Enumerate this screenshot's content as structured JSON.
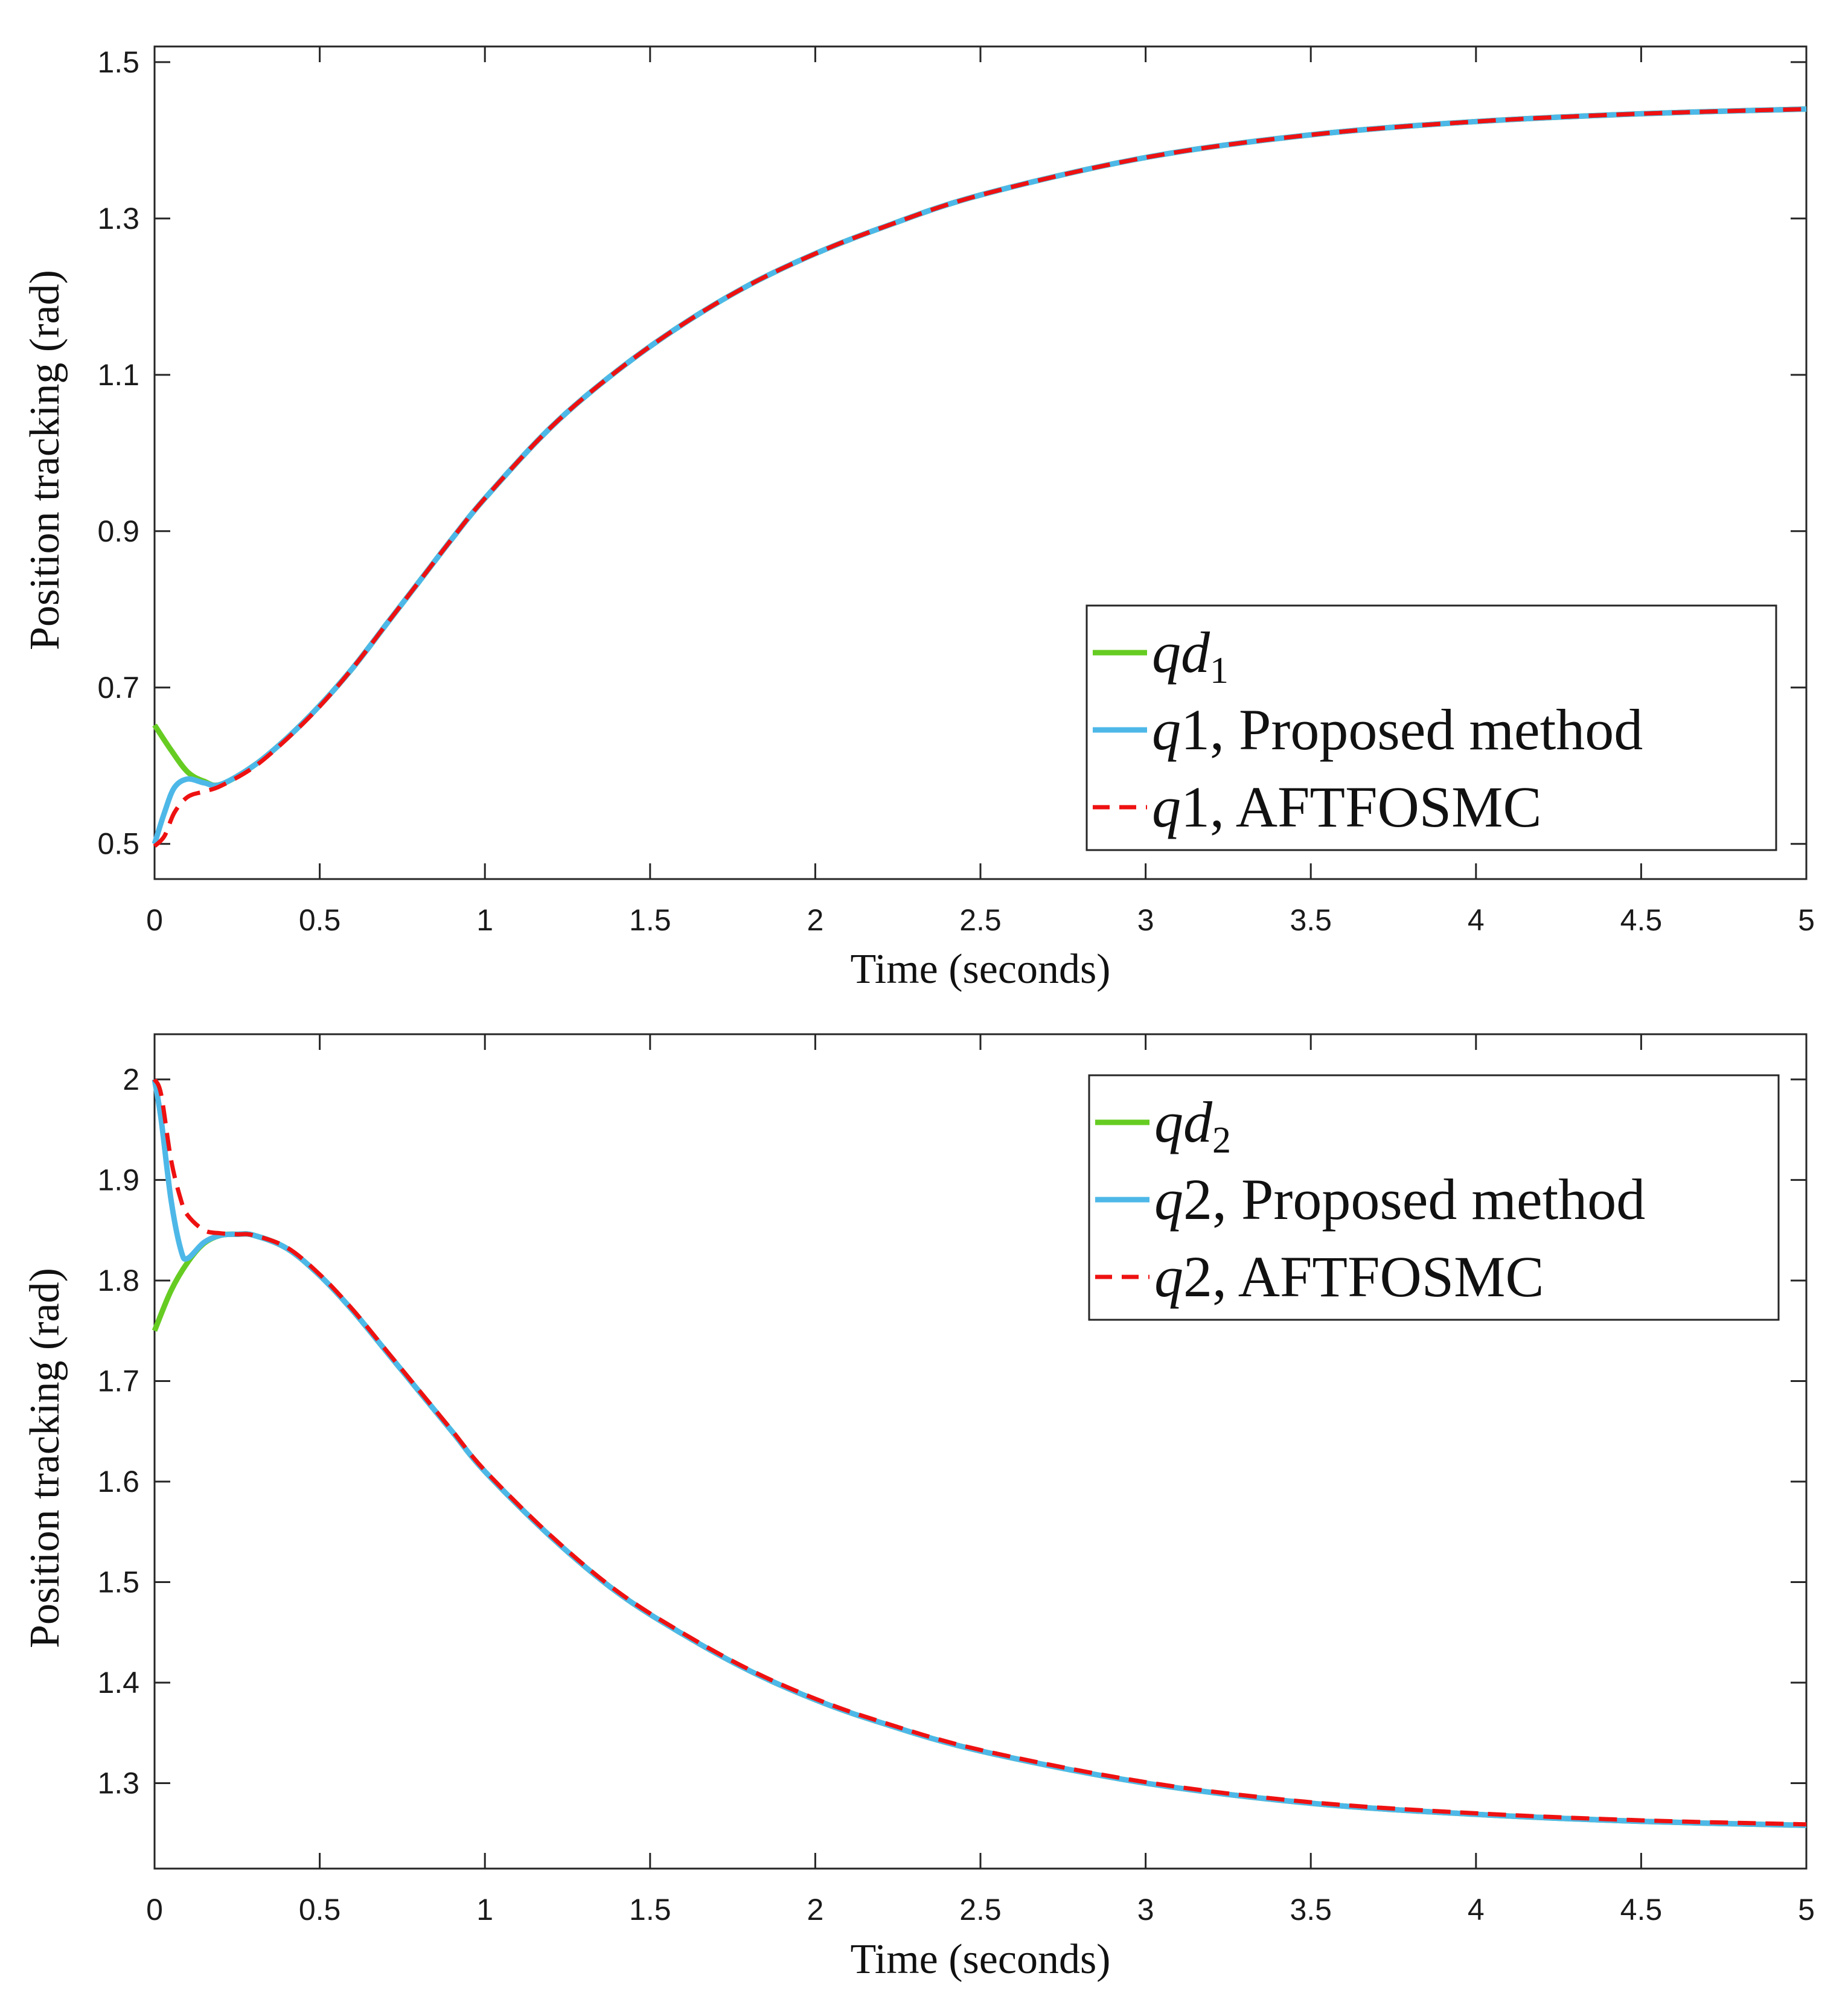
{
  "chart_data": [
    {
      "type": "line",
      "xlabel": "Time (seconds)",
      "ylabel": "Position tracking (rad)",
      "xlim": [
        0,
        5
      ],
      "ylim": [
        0.455,
        1.52
      ],
      "xticks": [
        0,
        0.5,
        1,
        1.5,
        2,
        2.5,
        3,
        3.5,
        4,
        4.5,
        5
      ],
      "xtick_labels": [
        "0",
        "0.5",
        "1",
        "1.5",
        "2",
        "2.5",
        "3",
        "3.5",
        "4",
        "4.5",
        "5"
      ],
      "yticks": [
        0.5,
        0.7,
        0.9,
        1.1,
        1.3,
        1.5
      ],
      "ytick_labels": [
        "0.5",
        "0.7",
        "0.9",
        "1.1",
        "1.3",
        "1.5"
      ],
      "legend_position": "bottom-right",
      "legend": [
        {
          "base": "qd",
          "sub": "1",
          "rest": ""
        },
        {
          "base": "q",
          "sub": "",
          "rest": "1, Proposed method"
        },
        {
          "base": "q",
          "sub": "",
          "rest": "1, AFTFOSMC"
        }
      ],
      "series": [
        {
          "name": "qd1",
          "color": "#66cc22",
          "dash": "solid",
          "x": [
            0,
            0.05,
            0.1,
            0.15,
            0.2,
            0.3,
            0.4,
            0.5,
            0.6,
            0.7,
            0.8,
            0.9,
            1.0,
            1.2,
            1.4,
            1.6,
            1.8,
            2.0,
            2.2,
            2.5,
            3.0,
            3.5,
            4.0,
            4.5,
            5.0
          ],
          "y": [
            0.652,
            0.62,
            0.592,
            0.58,
            0.576,
            0.6,
            0.635,
            0.677,
            0.725,
            0.78,
            0.835,
            0.89,
            0.942,
            1.033,
            1.105,
            1.165,
            1.215,
            1.255,
            1.288,
            1.33,
            1.378,
            1.407,
            1.424,
            1.434,
            1.44
          ]
        },
        {
          "name": "q1, Proposed method",
          "color": "#4db8e8",
          "dash": "solid",
          "x": [
            0,
            0.03,
            0.06,
            0.1,
            0.15,
            0.2,
            0.3,
            0.4,
            0.5,
            0.6,
            0.7,
            0.8,
            0.9,
            1.0,
            1.2,
            1.4,
            1.6,
            1.8,
            2.0,
            2.2,
            2.5,
            3.0,
            3.5,
            4.0,
            4.5,
            5.0
          ],
          "y": [
            0.5,
            0.54,
            0.572,
            0.583,
            0.578,
            0.576,
            0.6,
            0.635,
            0.677,
            0.725,
            0.78,
            0.835,
            0.89,
            0.942,
            1.033,
            1.105,
            1.165,
            1.215,
            1.255,
            1.288,
            1.33,
            1.378,
            1.407,
            1.424,
            1.434,
            1.44
          ]
        },
        {
          "name": "q1, AFTFOSMC",
          "color": "#ee1111",
          "dash": "dashed",
          "x": [
            0,
            0.03,
            0.06,
            0.1,
            0.15,
            0.2,
            0.3,
            0.4,
            0.5,
            0.6,
            0.7,
            0.8,
            0.9,
            1.0,
            1.2,
            1.4,
            1.6,
            1.8,
            2.0,
            2.2,
            2.5,
            3.0,
            3.5,
            4.0,
            4.5,
            5.0
          ],
          "y": [
            0.497,
            0.51,
            0.54,
            0.56,
            0.567,
            0.574,
            0.598,
            0.634,
            0.676,
            0.725,
            0.78,
            0.835,
            0.89,
            0.942,
            1.033,
            1.105,
            1.165,
            1.215,
            1.255,
            1.288,
            1.33,
            1.378,
            1.407,
            1.424,
            1.434,
            1.44
          ]
        }
      ]
    },
    {
      "type": "line",
      "xlabel": "Time (seconds)",
      "ylabel": "Position tracking (rad)",
      "xlim": [
        0,
        5
      ],
      "ylim": [
        1.215,
        2.045
      ],
      "xticks": [
        0,
        0.5,
        1,
        1.5,
        2,
        2.5,
        3,
        3.5,
        4,
        4.5,
        5
      ],
      "xtick_labels": [
        "0",
        "0.5",
        "1",
        "1.5",
        "2",
        "2.5",
        "3",
        "3.5",
        "4",
        "4.5",
        "5"
      ],
      "yticks": [
        1.3,
        1.4,
        1.5,
        1.6,
        1.7,
        1.8,
        1.9,
        2.0
      ],
      "ytick_labels": [
        "1.3",
        "1.4",
        "1.5",
        "1.6",
        "1.7",
        "1.8",
        "1.9",
        "2"
      ],
      "legend_position": "top-right",
      "legend": [
        {
          "base": "qd",
          "sub": "2",
          "rest": ""
        },
        {
          "base": "q",
          "sub": "",
          "rest": "2, Proposed method"
        },
        {
          "base": "q",
          "sub": "",
          "rest": "2, AFTFOSMC"
        }
      ],
      "series": [
        {
          "name": "qd2",
          "color": "#66cc22",
          "dash": "solid",
          "x": [
            0,
            0.05,
            0.1,
            0.15,
            0.2,
            0.25,
            0.3,
            0.4,
            0.5,
            0.6,
            0.7,
            0.8,
            0.9,
            1.0,
            1.2,
            1.4,
            1.6,
            1.8,
            2.0,
            2.2,
            2.5,
            3.0,
            3.5,
            4.0,
            4.5,
            5.0
          ],
          "y": [
            1.75,
            1.79,
            1.818,
            1.837,
            1.845,
            1.846,
            1.845,
            1.832,
            1.805,
            1.77,
            1.73,
            1.69,
            1.65,
            1.61,
            1.545,
            1.49,
            1.448,
            1.412,
            1.383,
            1.36,
            1.332,
            1.3,
            1.28,
            1.269,
            1.262,
            1.258
          ]
        },
        {
          "name": "q2, Proposed method",
          "color": "#4db8e8",
          "dash": "solid",
          "x": [
            0,
            0.02,
            0.05,
            0.08,
            0.1,
            0.15,
            0.2,
            0.25,
            0.3,
            0.4,
            0.5,
            0.6,
            0.7,
            0.8,
            0.9,
            1.0,
            1.2,
            1.4,
            1.6,
            1.8,
            2.0,
            2.2,
            2.5,
            3.0,
            3.5,
            4.0,
            4.5,
            5.0
          ],
          "y": [
            2.0,
            1.96,
            1.88,
            1.83,
            1.822,
            1.838,
            1.845,
            1.846,
            1.845,
            1.832,
            1.805,
            1.77,
            1.73,
            1.69,
            1.65,
            1.61,
            1.545,
            1.49,
            1.448,
            1.412,
            1.383,
            1.36,
            1.332,
            1.3,
            1.28,
            1.269,
            1.262,
            1.258
          ]
        },
        {
          "name": "q2, AFTFOSMC",
          "color": "#ee1111",
          "dash": "dashed",
          "x": [
            0,
            0.02,
            0.05,
            0.08,
            0.1,
            0.15,
            0.2,
            0.25,
            0.3,
            0.4,
            0.5,
            0.6,
            0.7,
            0.8,
            0.9,
            1.0,
            1.2,
            1.4,
            1.6,
            1.8,
            2.0,
            2.2,
            2.5,
            3.0,
            3.5,
            4.0,
            4.5,
            5.0
          ],
          "y": [
            2.0,
            1.985,
            1.92,
            1.88,
            1.865,
            1.85,
            1.847,
            1.846,
            1.845,
            1.833,
            1.806,
            1.771,
            1.731,
            1.691,
            1.651,
            1.611,
            1.546,
            1.491,
            1.449,
            1.413,
            1.384,
            1.361,
            1.333,
            1.301,
            1.281,
            1.27,
            1.263,
            1.259
          ]
        }
      ]
    }
  ]
}
